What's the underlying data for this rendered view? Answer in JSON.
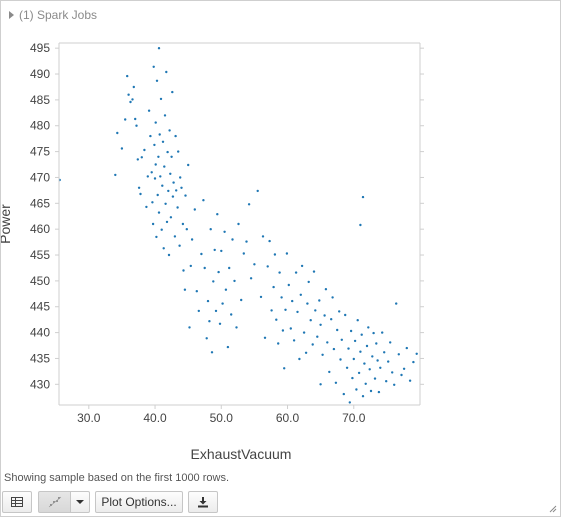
{
  "spark_jobs": {
    "label": "(1) Spark Jobs"
  },
  "chart_data": {
    "type": "scatter",
    "xlabel": "ExhaustVacuum",
    "ylabel": "Power",
    "xlim": [
      25.5,
      80
    ],
    "ylim": [
      426,
      496
    ],
    "xticks": [
      "30.0",
      "40.0",
      "50.0",
      "60.0",
      "70.0"
    ],
    "yticks": [
      "430",
      "435",
      "440",
      "445",
      "450",
      "455",
      "460",
      "465",
      "470",
      "475",
      "480",
      "485",
      "490",
      "495"
    ],
    "color": "#1f77b4",
    "grid": false,
    "series": [
      {
        "points": [
          [
            25.6,
            469.5
          ],
          [
            34.0,
            470.5
          ],
          [
            34.3,
            478.6
          ],
          [
            35.0,
            475.6
          ],
          [
            35.5,
            481.2
          ],
          [
            35.8,
            489.6
          ],
          [
            36.0,
            486.0
          ],
          [
            36.3,
            484.6
          ],
          [
            36.6,
            485.1
          ],
          [
            36.8,
            487.5
          ],
          [
            37.0,
            481.3
          ],
          [
            37.2,
            480.0
          ],
          [
            37.4,
            473.5
          ],
          [
            37.6,
            468.0
          ],
          [
            37.8,
            466.8
          ],
          [
            38.0,
            473.9
          ],
          [
            38.4,
            475.3
          ],
          [
            38.7,
            464.3
          ],
          [
            38.9,
            470.2
          ],
          [
            39.1,
            482.9
          ],
          [
            39.3,
            478.0
          ],
          [
            39.5,
            471.0
          ],
          [
            39.6,
            465.2
          ],
          [
            39.7,
            461.0
          ],
          [
            39.8,
            491.4
          ],
          [
            39.9,
            476.3
          ],
          [
            40.0,
            469.8
          ],
          [
            40.1,
            472.5
          ],
          [
            40.1,
            480.6
          ],
          [
            40.2,
            458.5
          ],
          [
            40.3,
            488.7
          ],
          [
            40.4,
            466.6
          ],
          [
            40.5,
            474.0
          ],
          [
            40.6,
            495.0
          ],
          [
            40.6,
            463.2
          ],
          [
            40.7,
            478.3
          ],
          [
            40.8,
            470.2
          ],
          [
            40.9,
            485.2
          ],
          [
            41.0,
            459.9
          ],
          [
            41.1,
            468.4
          ],
          [
            41.2,
            476.9
          ],
          [
            41.3,
            456.3
          ],
          [
            41.4,
            472.1
          ],
          [
            41.5,
            482.0
          ],
          [
            41.6,
            464.9
          ],
          [
            41.7,
            490.4
          ],
          [
            41.8,
            461.4
          ],
          [
            41.9,
            474.9
          ],
          [
            42.0,
            467.4
          ],
          [
            42.1,
            455.0
          ],
          [
            42.2,
            479.1
          ],
          [
            42.3,
            470.7
          ],
          [
            42.4,
            462.3
          ],
          [
            42.5,
            474.0
          ],
          [
            42.6,
            486.5
          ],
          [
            42.7,
            466.3
          ],
          [
            42.8,
            469.0
          ],
          [
            43.0,
            458.6
          ],
          [
            43.1,
            478.0
          ],
          [
            43.2,
            467.5
          ],
          [
            43.4,
            464.2
          ],
          [
            43.5,
            475.0
          ],
          [
            43.7,
            456.8
          ],
          [
            43.8,
            470.0
          ],
          [
            44.0,
            468.0
          ],
          [
            44.2,
            461.0
          ],
          [
            44.3,
            452.0
          ],
          [
            44.5,
            448.3
          ],
          [
            44.6,
            466.5
          ],
          [
            44.8,
            460.0
          ],
          [
            45.0,
            472.4
          ],
          [
            45.2,
            441.0
          ],
          [
            45.4,
            452.9
          ],
          [
            45.6,
            458.0
          ],
          [
            46.0,
            463.8
          ],
          [
            46.3,
            448.0
          ],
          [
            46.6,
            444.2
          ],
          [
            47.0,
            455.2
          ],
          [
            47.3,
            465.6
          ],
          [
            47.5,
            452.5
          ],
          [
            47.8,
            438.9
          ],
          [
            48.0,
            446.1
          ],
          [
            48.2,
            442.2
          ],
          [
            48.4,
            460.0
          ],
          [
            48.6,
            436.2
          ],
          [
            48.8,
            449.9
          ],
          [
            49.0,
            456.0
          ],
          [
            49.2,
            444.2
          ],
          [
            49.4,
            462.9
          ],
          [
            49.6,
            451.7
          ],
          [
            49.8,
            441.7
          ],
          [
            50.0,
            455.8
          ],
          [
            50.2,
            445.6
          ],
          [
            50.5,
            459.5
          ],
          [
            50.7,
            448.3
          ],
          [
            51.0,
            437.2
          ],
          [
            51.2,
            452.5
          ],
          [
            51.5,
            443.5
          ],
          [
            51.7,
            458.0
          ],
          [
            52.0,
            450.0
          ],
          [
            52.3,
            441.0
          ],
          [
            52.6,
            461.0
          ],
          [
            53.0,
            446.3
          ],
          [
            53.4,
            455.3
          ],
          [
            53.8,
            457.6
          ],
          [
            54.2,
            464.8
          ],
          [
            54.5,
            450.5
          ],
          [
            55.0,
            453.2
          ],
          [
            55.5,
            467.4
          ],
          [
            56.0,
            446.9
          ],
          [
            56.3,
            458.6
          ],
          [
            56.6,
            439.0
          ],
          [
            57.0,
            452.8
          ],
          [
            57.3,
            457.7
          ],
          [
            57.6,
            444.3
          ],
          [
            57.9,
            448.8
          ],
          [
            58.1,
            455.1
          ],
          [
            58.3,
            442.5
          ],
          [
            58.6,
            437.9
          ],
          [
            58.8,
            451.6
          ],
          [
            59.1,
            446.8
          ],
          [
            59.3,
            440.4
          ],
          [
            59.5,
            433.1
          ],
          [
            59.7,
            444.4
          ],
          [
            59.9,
            455.3
          ],
          [
            60.2,
            449.2
          ],
          [
            60.5,
            440.8
          ],
          [
            60.7,
            446.1
          ],
          [
            61.0,
            438.5
          ],
          [
            61.3,
            451.6
          ],
          [
            61.5,
            444.0
          ],
          [
            61.8,
            434.9
          ],
          [
            62.0,
            447.3
          ],
          [
            62.2,
            452.9
          ],
          [
            62.5,
            440.0
          ],
          [
            62.8,
            436.1
          ],
          [
            63.0,
            445.6
          ],
          [
            63.2,
            449.8
          ],
          [
            63.5,
            442.4
          ],
          [
            63.8,
            437.7
          ],
          [
            64.0,
            451.8
          ],
          [
            64.2,
            444.3
          ],
          [
            64.5,
            439.2
          ],
          [
            64.8,
            446.2
          ],
          [
            65.0,
            441.5
          ],
          [
            65.3,
            435.7
          ],
          [
            65.6,
            443.3
          ],
          [
            65.8,
            448.4
          ],
          [
            66.0,
            438.1
          ],
          [
            66.3,
            432.4
          ],
          [
            66.6,
            442.6
          ],
          [
            66.8,
            446.8
          ],
          [
            67.0,
            436.8
          ],
          [
            67.3,
            430.3
          ],
          [
            67.5,
            440.5
          ],
          [
            67.8,
            444.1
          ],
          [
            68.0,
            434.8
          ],
          [
            68.2,
            438.6
          ],
          [
            68.5,
            428.1
          ],
          [
            68.7,
            443.4
          ],
          [
            69.0,
            433.2
          ],
          [
            69.2,
            436.9
          ],
          [
            69.4,
            426.5
          ],
          [
            69.6,
            440.3
          ],
          [
            69.8,
            431.2
          ],
          [
            70.0,
            434.9
          ],
          [
            70.2,
            438.4
          ],
          [
            70.4,
            429.0
          ],
          [
            70.6,
            442.4
          ],
          [
            70.8,
            432.2
          ],
          [
            71.0,
            436.3
          ],
          [
            71.2,
            439.6
          ],
          [
            71.4,
            427.7
          ],
          [
            71.6,
            434.0
          ],
          [
            71.8,
            430.1
          ],
          [
            72.0,
            437.4
          ],
          [
            72.2,
            441.0
          ],
          [
            72.4,
            432.9
          ],
          [
            72.6,
            428.7
          ],
          [
            72.8,
            435.4
          ],
          [
            73.0,
            439.9
          ],
          [
            73.2,
            431.1
          ],
          [
            73.4,
            437.9
          ],
          [
            73.6,
            434.6
          ],
          [
            73.8,
            428.5
          ],
          [
            74.0,
            433.2
          ],
          [
            74.3,
            440.0
          ],
          [
            74.6,
            436.2
          ],
          [
            74.9,
            430.6
          ],
          [
            75.2,
            434.4
          ],
          [
            75.5,
            438.1
          ],
          [
            75.8,
            432.3
          ],
          [
            76.1,
            429.9
          ],
          [
            76.4,
            445.6
          ],
          [
            76.8,
            435.8
          ],
          [
            77.2,
            431.8
          ],
          [
            77.6,
            433.0
          ],
          [
            78.0,
            437.0
          ],
          [
            78.5,
            430.7
          ],
          [
            79.0,
            434.3
          ],
          [
            79.5,
            435.9
          ],
          [
            71.4,
            466.2
          ],
          [
            71.0,
            460.8
          ],
          [
            65.0,
            430.0
          ]
        ]
      }
    ]
  },
  "status_text": "Showing sample based on the first 1000 rows.",
  "toolbar": {
    "plot_options_label": "Plot Options..."
  }
}
